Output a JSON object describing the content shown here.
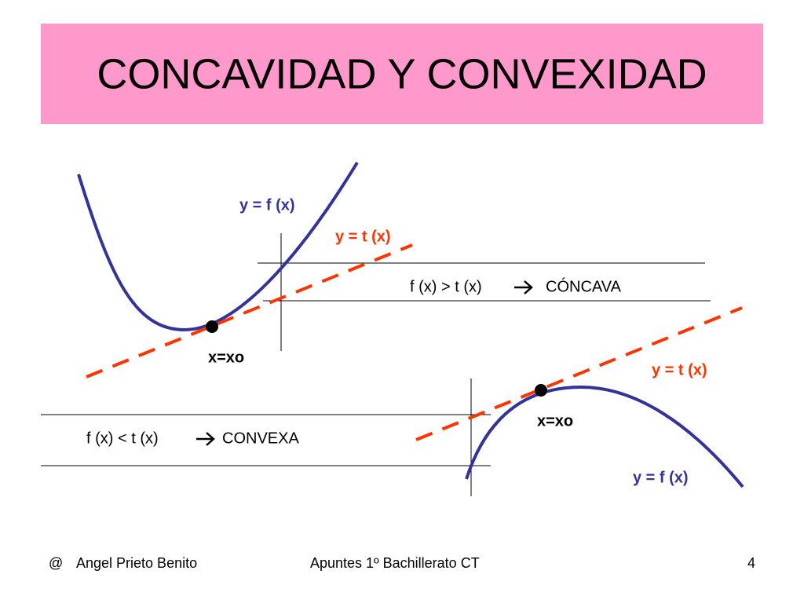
{
  "header": {
    "title": "CONCAVIDAD Y CONVEXIDAD"
  },
  "concave": {
    "curve_label": "y = f (x)",
    "tangent_label": "y = t (x)",
    "point_label": "x=xo",
    "condition": "f (x) > t (x)",
    "result": "CÓNCAVA"
  },
  "convex": {
    "curve_label": "y = f (x)",
    "tangent_label": "y = t (x)",
    "point_label": "x=xo",
    "condition": "f (x) < t (x)",
    "result": "CONVEXA"
  },
  "footer": {
    "symbol": "@",
    "author": "Angel Prieto Benito",
    "course": "Apuntes 1º Bachillerato CT",
    "page": "4"
  }
}
